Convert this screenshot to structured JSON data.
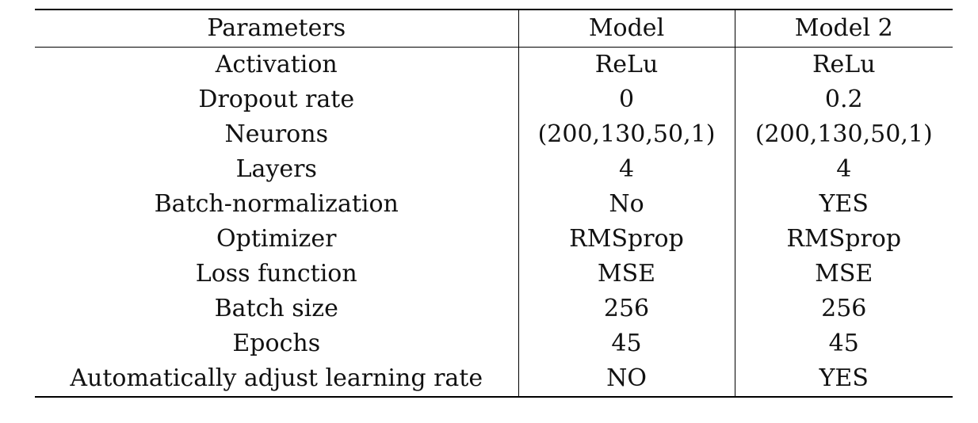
{
  "table": {
    "headers": [
      "Parameters",
      "Model",
      "Model 2"
    ],
    "rows": [
      [
        "Activation",
        "ReLu",
        "ReLu"
      ],
      [
        "Dropout rate",
        "0",
        "0.2"
      ],
      [
        "Neurons",
        "(200,130,50,1)",
        "(200,130,50,1)"
      ],
      [
        "Layers",
        "4",
        "4"
      ],
      [
        "Batch-normalization",
        "No",
        "YES"
      ],
      [
        "Optimizer",
        "RMSprop",
        "RMSprop"
      ],
      [
        "Loss function",
        "MSE",
        "MSE"
      ],
      [
        "Batch size",
        "256",
        "256"
      ],
      [
        "Epochs",
        "45",
        "45"
      ],
      [
        "Automatically adjust learning rate",
        "NO",
        "YES"
      ]
    ]
  }
}
